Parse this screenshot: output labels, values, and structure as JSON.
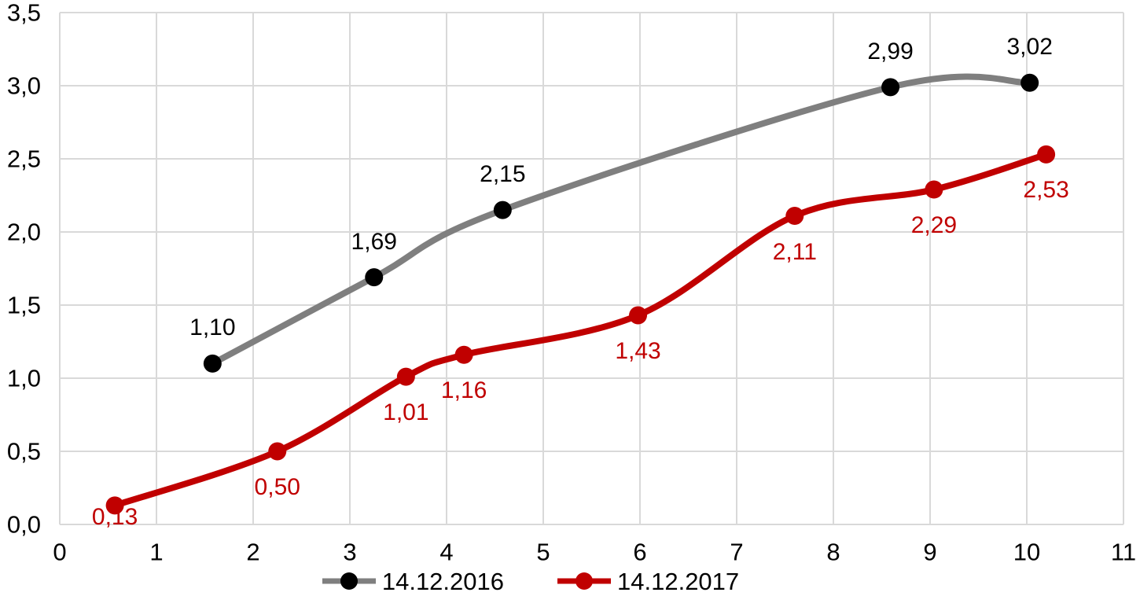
{
  "chart_data": {
    "type": "line",
    "title": "",
    "xlabel": "",
    "ylabel": "",
    "smooth": true,
    "grid": true,
    "legend_position": "bottom-center",
    "x_axis": {
      "min": 0,
      "max": 11,
      "tick_step": 1,
      "tick_labels": [
        "0",
        "1",
        "2",
        "3",
        "4",
        "5",
        "6",
        "7",
        "8",
        "9",
        "10",
        "11"
      ]
    },
    "y_axis": {
      "min": 0,
      "max": 3.5,
      "tick_step": 0.5,
      "tick_labels": [
        "0,0",
        "0,5",
        "1,0",
        "1,5",
        "2,0",
        "2,5",
        "3,0",
        "3,5"
      ]
    },
    "series": [
      {
        "name": "14.12.2016",
        "color": "#7F7F7F",
        "marker_color": "#000000",
        "label_color": "#000000",
        "label_position": "above",
        "points": [
          {
            "x": 1.58,
            "y": 1.1,
            "label": "1,10"
          },
          {
            "x": 3.25,
            "y": 1.69,
            "label": "1,69"
          },
          {
            "x": 4.58,
            "y": 2.15,
            "label": "2,15"
          },
          {
            "x": 8.59,
            "y": 2.99,
            "label": "2,99"
          },
          {
            "x": 10.03,
            "y": 3.02,
            "label": "3,02"
          }
        ]
      },
      {
        "name": "14.12.2017",
        "color": "#C00000",
        "marker_color": "#C00000",
        "label_color": "#C00000",
        "label_position": "below",
        "points": [
          {
            "x": 0.57,
            "y": 0.13,
            "label": "0,13"
          },
          {
            "x": 2.25,
            "y": 0.5,
            "label": "0,50"
          },
          {
            "x": 3.58,
            "y": 1.01,
            "label": "1,01"
          },
          {
            "x": 4.18,
            "y": 1.16,
            "label": "1,16"
          },
          {
            "x": 5.98,
            "y": 1.43,
            "label": "1,43"
          },
          {
            "x": 7.6,
            "y": 2.11,
            "label": "2,11"
          },
          {
            "x": 9.04,
            "y": 2.29,
            "label": "2,29"
          },
          {
            "x": 10.2,
            "y": 2.53,
            "label": "2,53"
          }
        ]
      }
    ],
    "colors": {
      "gridline": "#D9D9D9",
      "background": "#FFFFFF",
      "axis_text": "#000000"
    }
  }
}
